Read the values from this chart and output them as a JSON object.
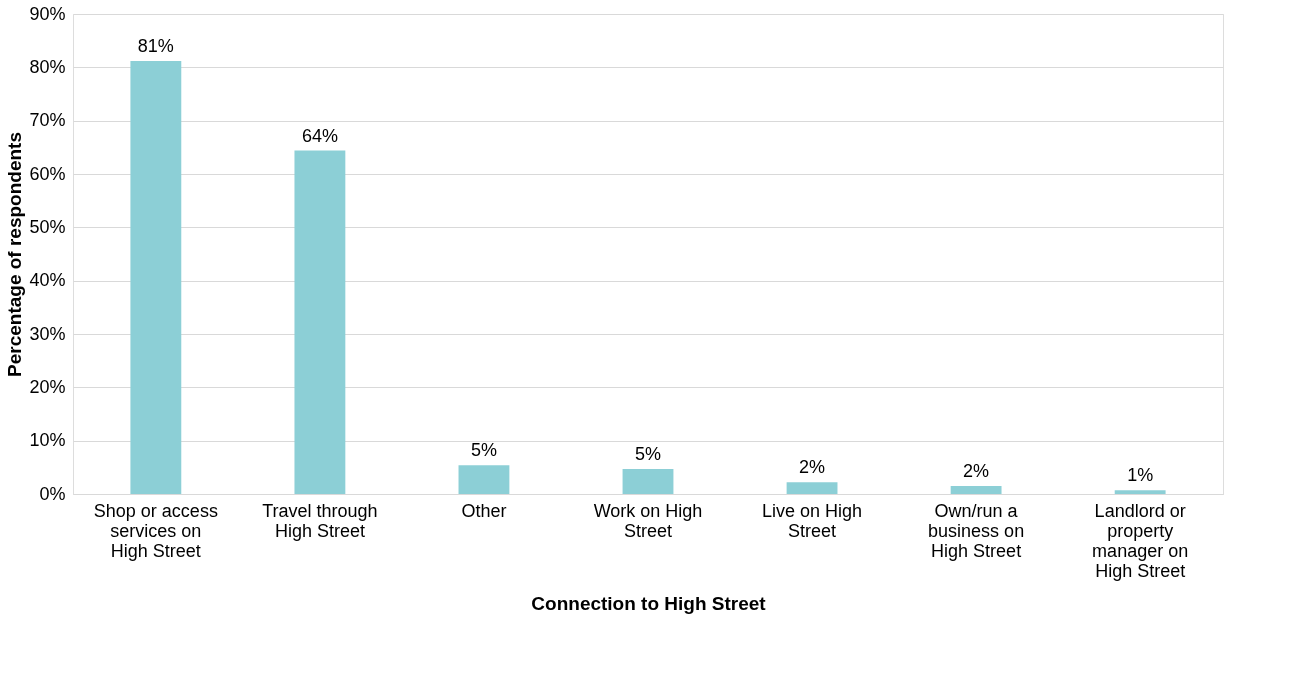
{
  "chart_data": {
    "type": "bar",
    "xlabel": "Connection to High Street",
    "ylabel": "Percentage of respondents",
    "categories": [
      "Shop or access services on High Street",
      "Travel through High Street",
      "Other",
      "Work on High Street",
      "Live on High Street",
      "Own/run a business on High Street",
      "Landlord or property manager on High Street"
    ],
    "values": [
      81.2,
      64.4,
      5.4,
      4.7,
      2.2,
      1.5,
      0.7
    ],
    "value_labels": [
      "81%",
      "64%",
      "5%",
      "5%",
      "2%",
      "2%",
      "1%"
    ],
    "color": "#8ccfd6",
    "ylim": [
      0,
      90
    ],
    "yticks": [
      {
        "value": 0,
        "label": "0%"
      },
      {
        "value": 10,
        "label": "10%"
      },
      {
        "value": 20,
        "label": "20%"
      },
      {
        "value": 30,
        "label": "30%"
      },
      {
        "value": 40,
        "label": "40%"
      },
      {
        "value": 50,
        "label": "50%"
      },
      {
        "value": 60,
        "label": "60%"
      },
      {
        "value": 70,
        "label": "70%"
      },
      {
        "value": 80,
        "label": "80%"
      },
      {
        "value": 90,
        "label": "90%"
      }
    ],
    "grid": "y"
  }
}
